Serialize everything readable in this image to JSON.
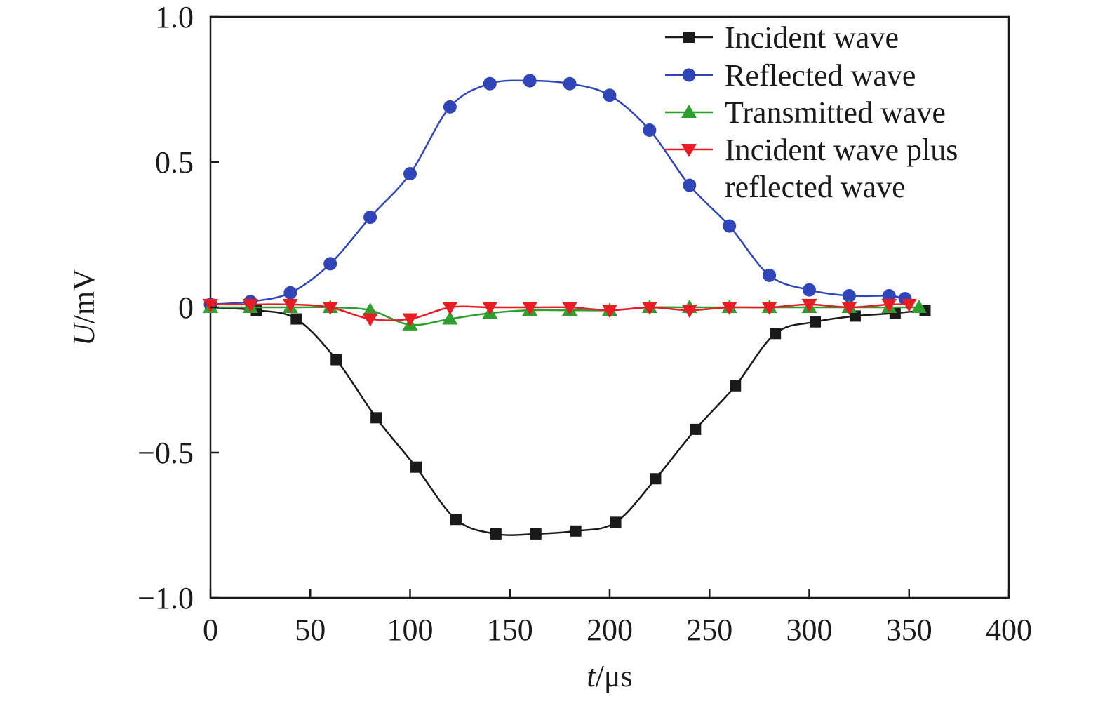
{
  "chart_data": {
    "type": "line",
    "xlabel": {
      "var": "t",
      "unit": "μs"
    },
    "ylabel": {
      "var": "U",
      "unit": "mV"
    },
    "xlim": [
      0,
      400
    ],
    "ylim": [
      -1.0,
      1.0
    ],
    "xticks": [
      0,
      50,
      100,
      150,
      200,
      250,
      300,
      350,
      400
    ],
    "xtick_labels": [
      "0",
      "50",
      "100",
      "150",
      "200",
      "250",
      "300",
      "350",
      "400"
    ],
    "yticks": [
      1.0,
      0.5,
      0,
      -0.5,
      -1.0
    ],
    "ytick_labels": [
      "1.0",
      "0.5",
      "0",
      "−0.5",
      "−1.0"
    ],
    "grid": false,
    "legend_position": "top-right",
    "legend_lines": [
      [
        "Incident wave"
      ],
      [
        "Reflected wave"
      ],
      [
        "Transmitted wave"
      ],
      [
        "Incident wave plus",
        "reflected wave"
      ]
    ],
    "series": [
      {
        "name": "Incident wave",
        "color": "#1a1a1a",
        "marker": "square",
        "x": [
          0,
          23,
          43,
          63,
          83,
          103,
          123,
          143,
          163,
          183,
          203,
          223,
          243,
          263,
          283,
          303,
          323,
          343,
          358
        ],
        "y": [
          0.0,
          -0.01,
          -0.04,
          -0.18,
          -0.38,
          -0.55,
          -0.73,
          -0.78,
          -0.78,
          -0.77,
          -0.74,
          -0.59,
          -0.42,
          -0.27,
          -0.09,
          -0.05,
          -0.03,
          -0.02,
          -0.01
        ]
      },
      {
        "name": "Reflected wave",
        "color": "#3046b8",
        "marker": "circle",
        "x": [
          0,
          20,
          40,
          60,
          80,
          100,
          120,
          140,
          160,
          180,
          200,
          220,
          240,
          260,
          280,
          300,
          320,
          340,
          348
        ],
        "y": [
          0.01,
          0.02,
          0.05,
          0.15,
          0.31,
          0.46,
          0.69,
          0.77,
          0.78,
          0.77,
          0.73,
          0.61,
          0.42,
          0.28,
          0.11,
          0.06,
          0.04,
          0.04,
          0.03
        ]
      },
      {
        "name": "Transmitted wave",
        "color": "#2e9e2e",
        "marker": "triangle-up",
        "x": [
          0,
          20,
          40,
          60,
          80,
          100,
          120,
          140,
          160,
          180,
          200,
          220,
          240,
          260,
          280,
          300,
          320,
          340,
          355
        ],
        "y": [
          0.0,
          0.0,
          0.0,
          0.0,
          -0.01,
          -0.06,
          -0.04,
          -0.02,
          -0.01,
          -0.01,
          -0.01,
          0.0,
          0.0,
          0.0,
          0.0,
          0.0,
          0.0,
          0.0,
          0.0
        ]
      },
      {
        "name": "Incident wave plus reflected wave",
        "color": "#e81c24",
        "marker": "triangle-down",
        "x": [
          0,
          20,
          40,
          60,
          80,
          100,
          120,
          140,
          160,
          180,
          200,
          220,
          240,
          260,
          280,
          300,
          320,
          340,
          350
        ],
        "y": [
          0.01,
          0.01,
          0.01,
          0.0,
          -0.04,
          -0.04,
          0.0,
          0.0,
          0.0,
          0.0,
          -0.01,
          0.0,
          -0.01,
          0.0,
          0.0,
          0.01,
          0.0,
          0.01,
          0.01
        ]
      }
    ]
  }
}
